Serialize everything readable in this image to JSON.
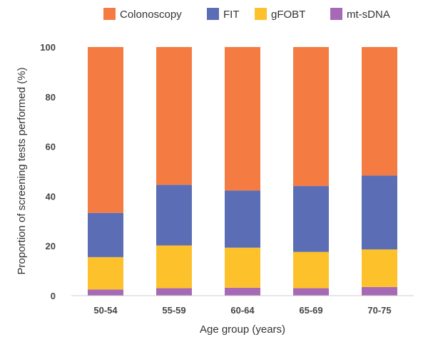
{
  "chart_data": {
    "type": "bar",
    "stacked": true,
    "categories": [
      "50-54",
      "55-59",
      "60-64",
      "65-69",
      "70-75"
    ],
    "series": [
      {
        "name": "mt-sDNA",
        "color": "#a569b5",
        "values": [
          2.5,
          3.0,
          3.2,
          3.0,
          3.5
        ]
      },
      {
        "name": "gFOBT",
        "color": "#fdc22b",
        "values": [
          13.0,
          17.2,
          16.1,
          14.6,
          15.1
        ]
      },
      {
        "name": "FIT",
        "color": "#5b6db5",
        "values": [
          17.8,
          24.4,
          23.0,
          26.5,
          29.7
        ]
      },
      {
        "name": "Colonoscopy",
        "color": "#f47c43",
        "values": [
          66.7,
          55.4,
          57.7,
          55.9,
          51.7
        ]
      }
    ],
    "legend_order": [
      "Colonoscopy",
      "FIT",
      "gFOBT",
      "mt-sDNA"
    ],
    "legend_position": "top",
    "xlabel": "Age group (years)",
    "ylabel": "Proportion of screening tests performed (%)",
    "ylim": [
      0,
      100
    ],
    "yticks": [
      0,
      20,
      40,
      60,
      80,
      100
    ],
    "grid": false
  }
}
